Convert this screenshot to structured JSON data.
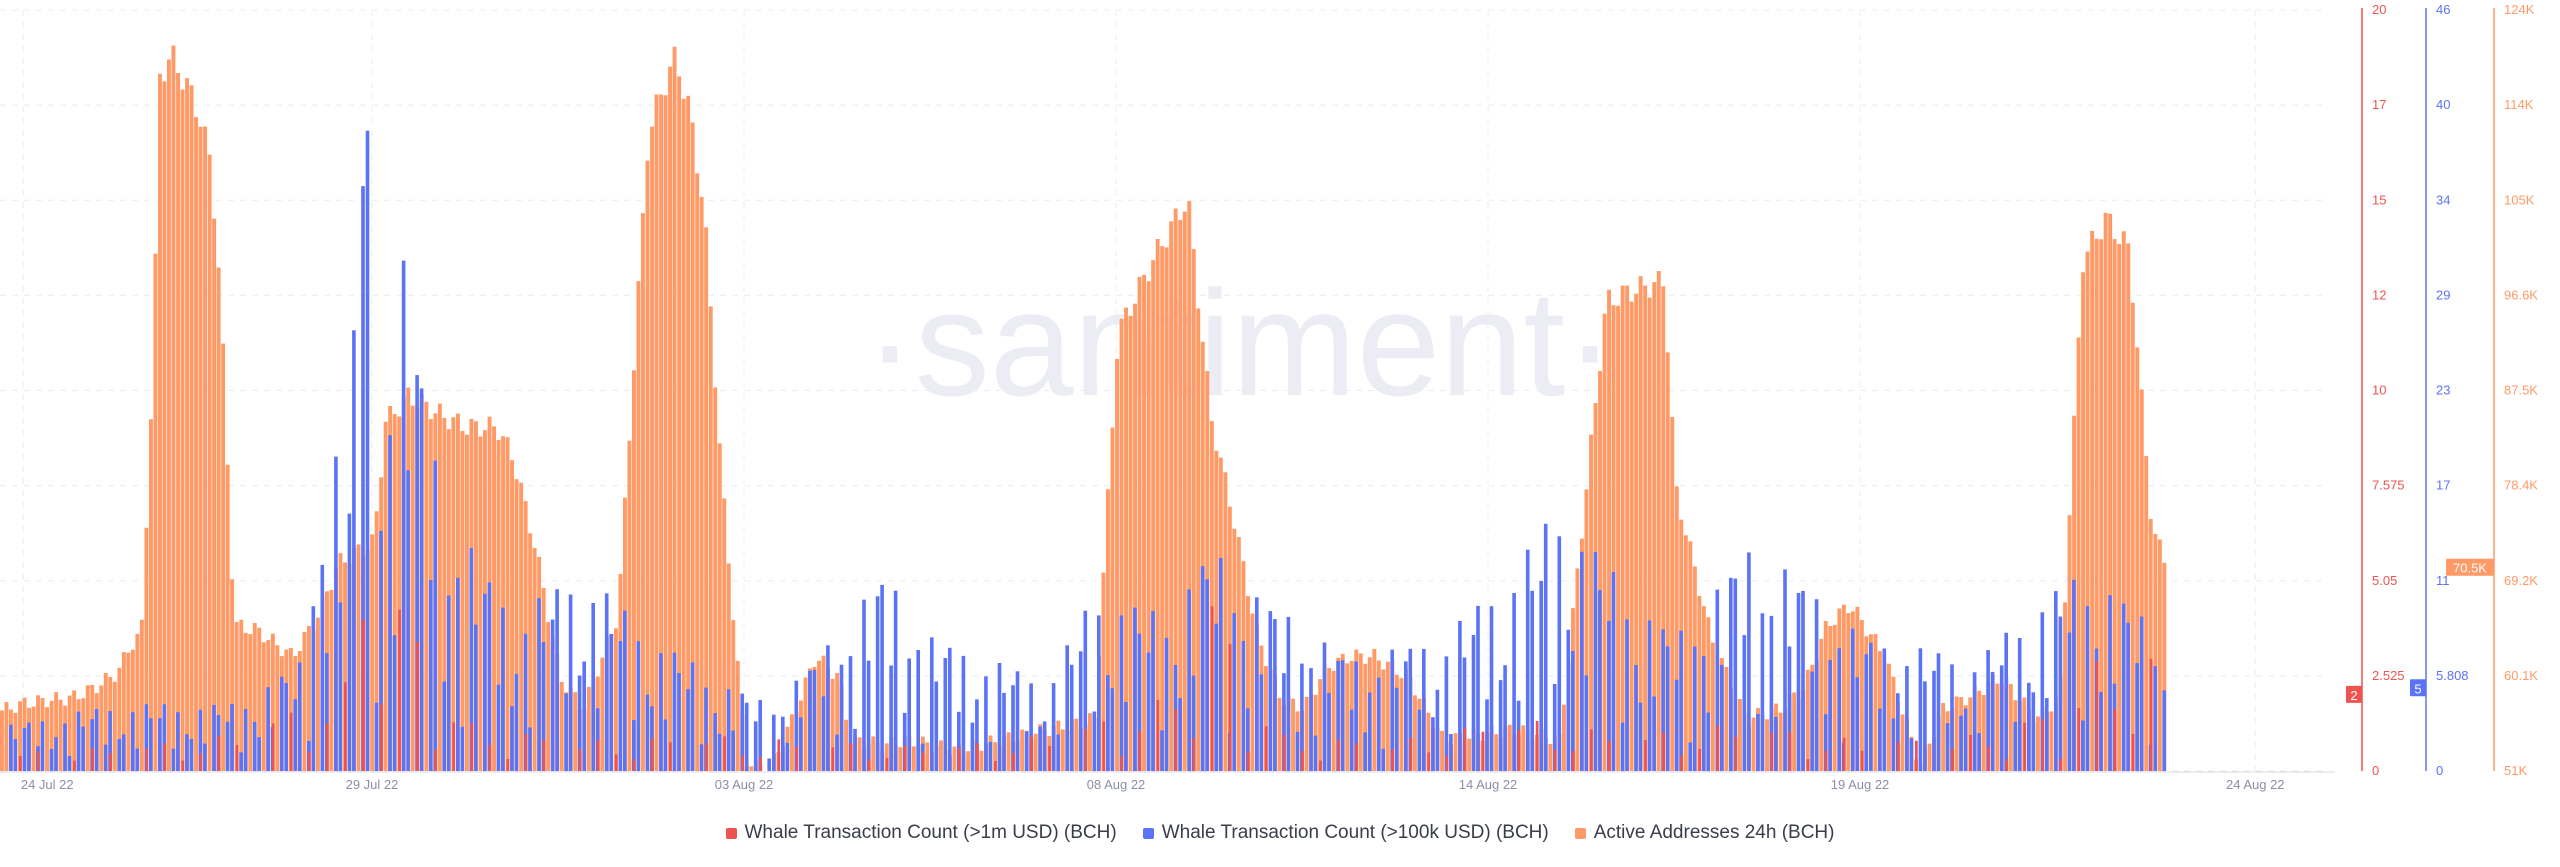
{
  "watermark": "·santiment·",
  "legend": [
    {
      "label": "Whale Transaction Count (>1m USD) (BCH)",
      "color": "#ef5350"
    },
    {
      "label": "Whale Transaction Count (>100k USD) (BCH)",
      "color": "#5b73f5"
    },
    {
      "label": "Active Addresses 24h (BCH)",
      "color": "#ff9a66"
    }
  ],
  "chart_data": {
    "type": "bar",
    "x_ticks": [
      "24 Jul 22",
      "29 Jul 22",
      "03 Aug 22",
      "08 Aug 22",
      "14 Aug 22",
      "19 Aug 22",
      "24 Aug 22"
    ],
    "axes": [
      {
        "id": "red",
        "color": "#ef5350",
        "ticks": [
          "0",
          "2.525",
          "5.05",
          "7.575",
          "10",
          "12",
          "15",
          "17",
          "20"
        ],
        "range": [
          0,
          20
        ],
        "current": "2"
      },
      {
        "id": "blue",
        "color": "#5b73f5",
        "ticks": [
          "0",
          "5.808",
          "11",
          "17",
          "23",
          "29",
          "34",
          "40",
          "46"
        ],
        "range": [
          0,
          46
        ],
        "current": "5"
      },
      {
        "id": "orange",
        "color": "#ff9a66",
        "ticks": [
          "51K",
          "60.1K",
          "69.2K",
          "78.4K",
          "87.5K",
          "96.6K",
          "105K",
          "114K",
          "124K"
        ],
        "range": [
          51000,
          124000
        ],
        "current": "70.5K"
      }
    ],
    "active_addresses_anchors": [
      [
        0,
        56800
      ],
      [
        0.01,
        57500
      ],
      [
        0.02,
        57800
      ],
      [
        0.03,
        58000
      ],
      [
        0.04,
        59000
      ],
      [
        0.05,
        60500
      ],
      [
        0.055,
        63000
      ],
      [
        0.06,
        64000
      ],
      [
        0.065,
        90000
      ],
      [
        0.068,
        118000
      ],
      [
        0.073,
        119500
      ],
      [
        0.078,
        117500
      ],
      [
        0.085,
        114000
      ],
      [
        0.09,
        109000
      ],
      [
        0.094,
        97000
      ],
      [
        0.1,
        65000
      ],
      [
        0.11,
        64500
      ],
      [
        0.125,
        62000
      ],
      [
        0.135,
        65500
      ],
      [
        0.145,
        71000
      ],
      [
        0.16,
        73000
      ],
      [
        0.165,
        84500
      ],
      [
        0.175,
        87000
      ],
      [
        0.19,
        85000
      ],
      [
        0.2,
        84000
      ],
      [
        0.213,
        84000
      ],
      [
        0.22,
        81000
      ],
      [
        0.23,
        72000
      ],
      [
        0.24,
        60000
      ],
      [
        0.25,
        57000
      ],
      [
        0.265,
        66000
      ],
      [
        0.278,
        112000
      ],
      [
        0.285,
        117000
      ],
      [
        0.29,
        119500
      ],
      [
        0.296,
        114000
      ],
      [
        0.302,
        105000
      ],
      [
        0.31,
        78000
      ],
      [
        0.32,
        52000
      ],
      [
        0.33,
        51000
      ],
      [
        0.34,
        56000
      ],
      [
        0.35,
        62000
      ],
      [
        0.36,
        60000
      ],
      [
        0.365,
        54000
      ],
      [
        0.38,
        53500
      ],
      [
        0.39,
        54000
      ],
      [
        0.41,
        53000
      ],
      [
        0.43,
        54000
      ],
      [
        0.45,
        55000
      ],
      [
        0.47,
        56000
      ],
      [
        0.48,
        93000
      ],
      [
        0.495,
        100000
      ],
      [
        0.51,
        106000
      ],
      [
        0.52,
        85000
      ],
      [
        0.53,
        75000
      ],
      [
        0.54,
        64000
      ],
      [
        0.55,
        58000
      ],
      [
        0.56,
        57000
      ],
      [
        0.57,
        61000
      ],
      [
        0.58,
        62000
      ],
      [
        0.59,
        62000
      ],
      [
        0.605,
        60000
      ],
      [
        0.62,
        54000
      ],
      [
        0.65,
        55000
      ],
      [
        0.67,
        54000
      ],
      [
        0.69,
        96000
      ],
      [
        0.7,
        97000
      ],
      [
        0.715,
        98000
      ],
      [
        0.72,
        78000
      ],
      [
        0.735,
        64000
      ],
      [
        0.75,
        56000
      ],
      [
        0.765,
        57000
      ],
      [
        0.775,
        59000
      ],
      [
        0.785,
        65000
      ],
      [
        0.795,
        67000
      ],
      [
        0.81,
        62000
      ],
      [
        0.825,
        51500
      ],
      [
        0.835,
        57000
      ],
      [
        0.845,
        58000
      ],
      [
        0.86,
        60000
      ],
      [
        0.875,
        56000
      ],
      [
        0.885,
        58000
      ],
      [
        0.895,
        100000
      ],
      [
        0.905,
        104000
      ],
      [
        0.915,
        101000
      ],
      [
        0.925,
        74000
      ],
      [
        0.932,
        70500
      ]
    ],
    "whale_100k_anchors": [
      [
        0,
        2
      ],
      [
        0.05,
        3
      ],
      [
        0.1,
        3
      ],
      [
        0.13,
        5
      ],
      [
        0.14,
        16
      ],
      [
        0.15,
        12
      ],
      [
        0.155,
        45
      ],
      [
        0.16,
        10
      ],
      [
        0.17,
        25
      ],
      [
        0.19,
        12
      ],
      [
        0.22,
        7
      ],
      [
        0.25,
        9
      ],
      [
        0.28,
        6
      ],
      [
        0.31,
        4
      ],
      [
        0.33,
        3
      ],
      [
        0.35,
        5
      ],
      [
        0.38,
        9
      ],
      [
        0.4,
        6
      ],
      [
        0.45,
        4
      ],
      [
        0.47,
        8
      ],
      [
        0.5,
        7
      ],
      [
        0.52,
        10
      ],
      [
        0.54,
        8
      ],
      [
        0.58,
        5
      ],
      [
        0.62,
        6
      ],
      [
        0.65,
        9
      ],
      [
        0.67,
        12
      ],
      [
        0.7,
        8
      ],
      [
        0.72,
        6
      ],
      [
        0.75,
        10
      ],
      [
        0.77,
        9
      ],
      [
        0.8,
        6
      ],
      [
        0.85,
        5
      ],
      [
        0.88,
        8
      ],
      [
        0.9,
        9
      ],
      [
        0.92,
        7
      ],
      [
        0.932,
        5
      ]
    ],
    "whale_1m_anchors": [
      [
        0,
        0.3
      ],
      [
        0.05,
        0.4
      ],
      [
        0.1,
        0.6
      ],
      [
        0.15,
        1.5
      ],
      [
        0.16,
        6
      ],
      [
        0.17,
        3
      ],
      [
        0.2,
        0.8
      ],
      [
        0.25,
        0.5
      ],
      [
        0.3,
        0.6
      ],
      [
        0.35,
        0.5
      ],
      [
        0.4,
        0.4
      ],
      [
        0.45,
        0.6
      ],
      [
        0.5,
        1.2
      ],
      [
        0.52,
        3
      ],
      [
        0.55,
        0.6
      ],
      [
        0.6,
        0.5
      ],
      [
        0.65,
        0.9
      ],
      [
        0.7,
        0.6
      ],
      [
        0.75,
        0.8
      ],
      [
        0.8,
        0.5
      ],
      [
        0.85,
        0.6
      ],
      [
        0.88,
        1.0
      ],
      [
        0.9,
        1.8
      ],
      [
        0.932,
        2
      ]
    ]
  }
}
